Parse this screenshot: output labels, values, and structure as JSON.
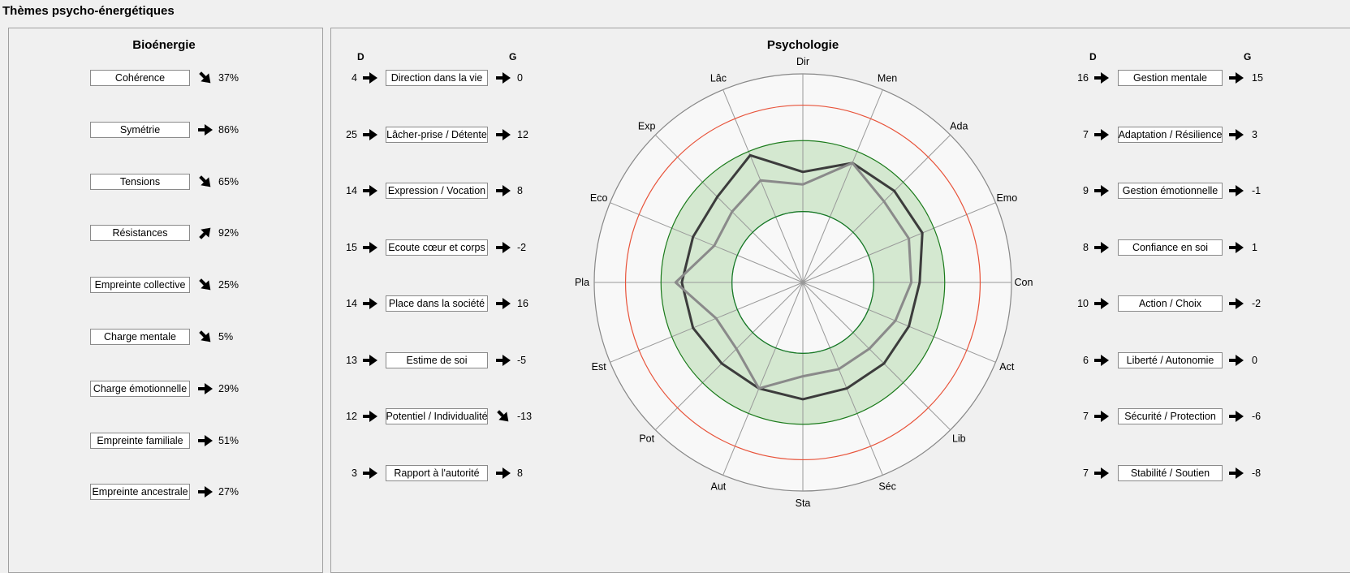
{
  "title": "Thèmes psycho-énergétiques",
  "bio": {
    "title": "Bioénergie",
    "items": [
      {
        "label": "Cohérence",
        "arrow": "down-right",
        "value": "37%"
      },
      {
        "label": "Symétrie",
        "arrow": "right",
        "value": "86%"
      },
      {
        "label": "Tensions",
        "arrow": "down-right",
        "value": "65%"
      },
      {
        "label": "Résistances",
        "arrow": "up-right",
        "value": "92%"
      },
      {
        "label": "Empreinte collective",
        "arrow": "down-right",
        "value": "25%"
      },
      {
        "label": "Charge mentale",
        "arrow": "down-right",
        "value": "5%"
      },
      {
        "label": "Charge émotionnelle",
        "arrow": "right",
        "value": "29%"
      },
      {
        "label": "Empreinte familiale",
        "arrow": "right",
        "value": "51%"
      },
      {
        "label": "Empreinte ancestrale",
        "arrow": "right",
        "value": "27%"
      }
    ]
  },
  "psy": {
    "title": "Psychologie",
    "header_d": "D",
    "header_g": "G",
    "left": [
      {
        "d": "4",
        "label": "Direction dans la vie",
        "g_arrow": "right",
        "g": "0"
      },
      {
        "d": "25",
        "label": "Lâcher-prise / Détente",
        "g_arrow": "right",
        "g": "12"
      },
      {
        "d": "14",
        "label": "Expression / Vocation",
        "g_arrow": "right",
        "g": "8"
      },
      {
        "d": "15",
        "label": "Ecoute cœur et corps",
        "g_arrow": "right",
        "g": "-2"
      },
      {
        "d": "14",
        "label": "Place dans la société",
        "g_arrow": "right",
        "g": "16"
      },
      {
        "d": "13",
        "label": "Estime de soi",
        "g_arrow": "right",
        "g": "-5"
      },
      {
        "d": "12",
        "label": "Potentiel / Individualité",
        "g_arrow": "down-right",
        "g": "-13"
      },
      {
        "d": "3",
        "label": "Rapport à l'autorité",
        "g_arrow": "right",
        "g": "8"
      }
    ],
    "right": [
      {
        "d": "16",
        "label": "Gestion mentale",
        "g_arrow": "right",
        "g": "15"
      },
      {
        "d": "7",
        "label": "Adaptation / Résilience",
        "g_arrow": "right",
        "g": "3"
      },
      {
        "d": "9",
        "label": "Gestion émotionnelle",
        "g_arrow": "right",
        "g": "-1"
      },
      {
        "d": "8",
        "label": "Confiance en soi",
        "g_arrow": "right",
        "g": "1"
      },
      {
        "d": "10",
        "label": "Action / Choix",
        "g_arrow": "right",
        "g": "-2"
      },
      {
        "d": "6",
        "label": "Liberté / Autonomie",
        "g_arrow": "right",
        "g": "0"
      },
      {
        "d": "7",
        "label": "Sécurité / Protection",
        "g_arrow": "right",
        "g": "-6"
      },
      {
        "d": "7",
        "label": "Stabilité / Soutien",
        "g_arrow": "right",
        "g": "-8"
      }
    ]
  },
  "colors": {
    "outer_ring": "#888888",
    "red_ring": "#e8533a",
    "green_ring": "#1a7a1a",
    "green_fill": "#d4e8d0",
    "blue_ring": "#3a86c8",
    "series_dark": "#3c3c3c",
    "series_light": "#8a8a8a"
  },
  "chart_data": {
    "type": "radar",
    "title": "Psychologie",
    "axes": [
      "Dir",
      "Men",
      "Ada",
      "Emo",
      "Con",
      "Act",
      "Lib",
      "Séc",
      "Sta",
      "Aut",
      "Pot",
      "Est",
      "Pla",
      "Eco",
      "Exp",
      "Lâc"
    ],
    "scale": [
      0,
      1
    ],
    "rings": [
      0.34,
      0.68,
      0.85,
      1.0
    ],
    "green_band": [
      0.34,
      0.68
    ],
    "series": [
      {
        "values": [
          0.53,
          0.62,
          0.62,
          0.62,
          0.56,
          0.55,
          0.55,
          0.55,
          0.56,
          0.55,
          0.55,
          0.57,
          0.58,
          0.57,
          0.58,
          0.66
        ]
      },
      {
        "values": [
          0.47,
          0.62,
          0.55,
          0.55,
          0.52,
          0.48,
          0.45,
          0.45,
          0.45,
          0.55,
          0.45,
          0.45,
          0.61,
          0.46,
          0.48,
          0.53
        ]
      }
    ]
  }
}
